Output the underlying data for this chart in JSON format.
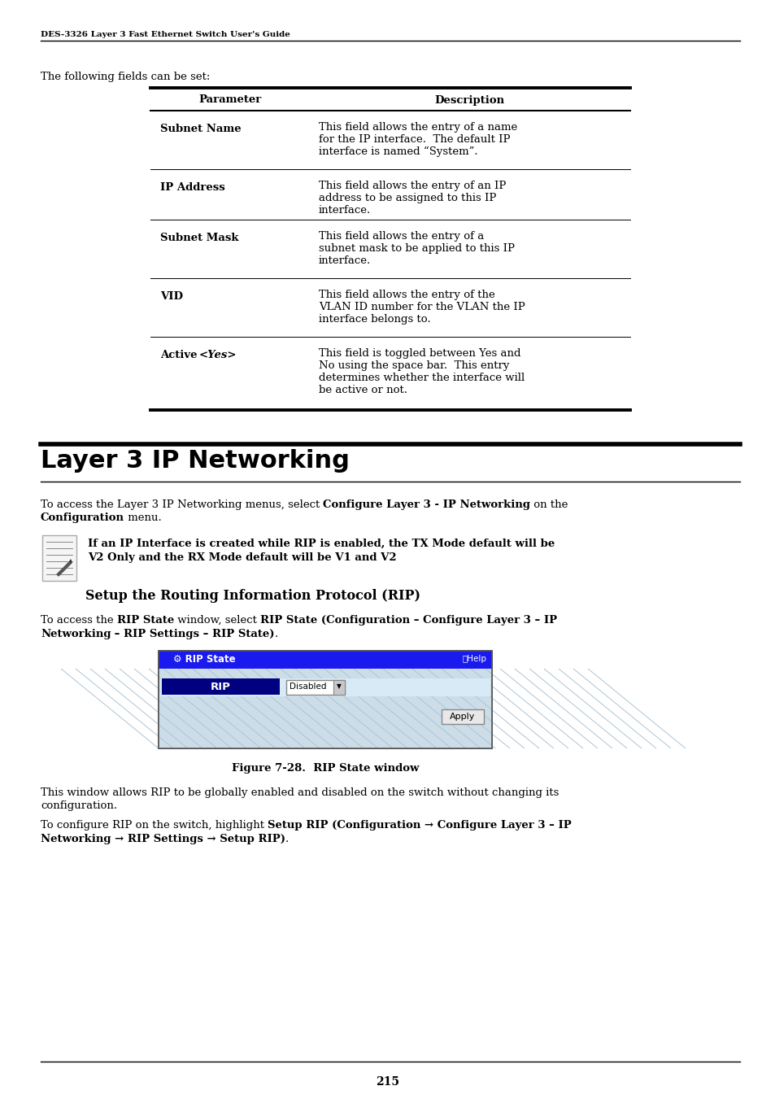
{
  "header_text": "DES-3326 Layer 3 Fast Ethernet Switch User's Guide",
  "intro_text": "The following fields can be set:",
  "table_header": [
    "Parameter",
    "Description"
  ],
  "table_rows": [
    {
      "param": "Subnet Name",
      "desc_lines": [
        "This field allows the entry of a name",
        "for the IP interface.  The default IP",
        "interface is named “System”."
      ]
    },
    {
      "param": "IP Address",
      "desc_lines": [
        "This field allows the entry of an IP",
        "address to be assigned to this IP",
        "interface."
      ]
    },
    {
      "param": "Subnet Mask",
      "desc_lines": [
        "This field allows the entry of a",
        "subnet mask to be applied to this IP",
        "interface."
      ]
    },
    {
      "param": "VID",
      "desc_lines": [
        "This field allows the entry of the",
        "VLAN ID number for the VLAN the IP",
        "interface belongs to."
      ]
    },
    {
      "param": "Active",
      "param_italic": "<Yes>",
      "desc_lines": [
        "This field is toggled between Yes and",
        "No using the space bar.  This entry",
        "determines whether the interface will",
        "be active or not."
      ]
    }
  ],
  "section_title": "Layer 3 IP Networking",
  "note_line1": "If an IP Interface is created while RIP is enabled, the TX Mode default will be",
  "note_line2": "V2 Only and the RX Mode default will be V1 and V2",
  "subsection_title": "Setup the Routing Information Protocol (RIP)",
  "figure_caption": "Figure 7-28.  RIP State window",
  "page_number": "215",
  "bg_color": "#ffffff",
  "text_color": "#000000",
  "win_title_bg": "#1a1aee",
  "win_body_bg": "#d4e4f0",
  "win_row_bg": "#e8f4fc",
  "rip_label_bg": "#000080"
}
